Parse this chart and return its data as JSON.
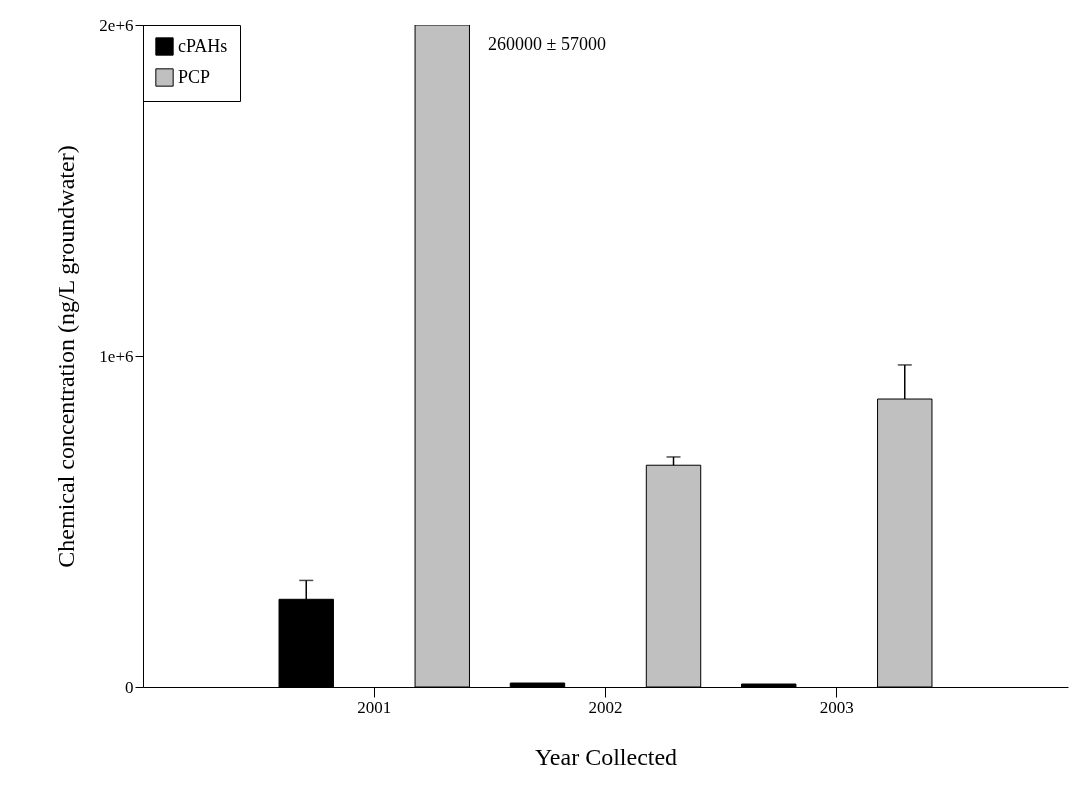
{
  "chart_data": {
    "type": "bar",
    "xlabel": "Year Collected",
    "ylabel": "Chemical concentration (ng/L groundwater)",
    "categories": [
      "2001",
      "2002",
      "2003"
    ],
    "series": [
      {
        "name": "cPAHs",
        "color": "#000000",
        "values": [
          265000,
          12000,
          9000
        ],
        "errors": [
          57000,
          null,
          null
        ]
      },
      {
        "name": "PCP",
        "color": "#c0c0c0",
        "values": [
          2000000,
          670000,
          870000
        ],
        "errors": [
          null,
          25000,
          103000
        ]
      }
    ],
    "ylim": [
      0,
      2000000
    ],
    "yticks": [
      0,
      {
        "value": 1000000,
        "label": "1e+6"
      },
      {
        "value": 2000000,
        "label": "2e+6"
      }
    ],
    "legend": "top left",
    "grid": false,
    "annotations": [
      "260000 ± 57000"
    ]
  }
}
